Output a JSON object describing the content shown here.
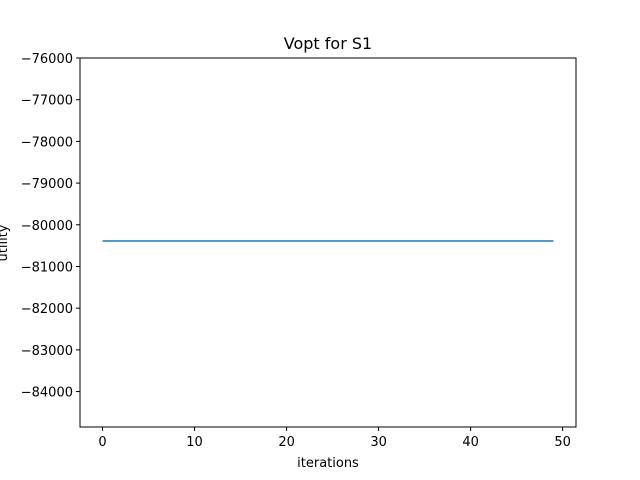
{
  "chart_data": {
    "type": "line",
    "title": "Vopt for S1",
    "xlabel": "iterations",
    "ylabel": "utility",
    "xlim": [
      -2.45,
      51.45
    ],
    "ylim": [
      -84850,
      -76000
    ],
    "xticks": [
      0,
      10,
      20,
      30,
      40,
      50
    ],
    "yticks": [
      -84000,
      -83000,
      -82000,
      -81000,
      -80000,
      -79000,
      -78000,
      -77000,
      -76000
    ],
    "grid": false,
    "series": [
      {
        "color": "#1f77b4",
        "x": [
          0,
          49
        ],
        "y": [
          -80390,
          -80390
        ]
      }
    ]
  }
}
